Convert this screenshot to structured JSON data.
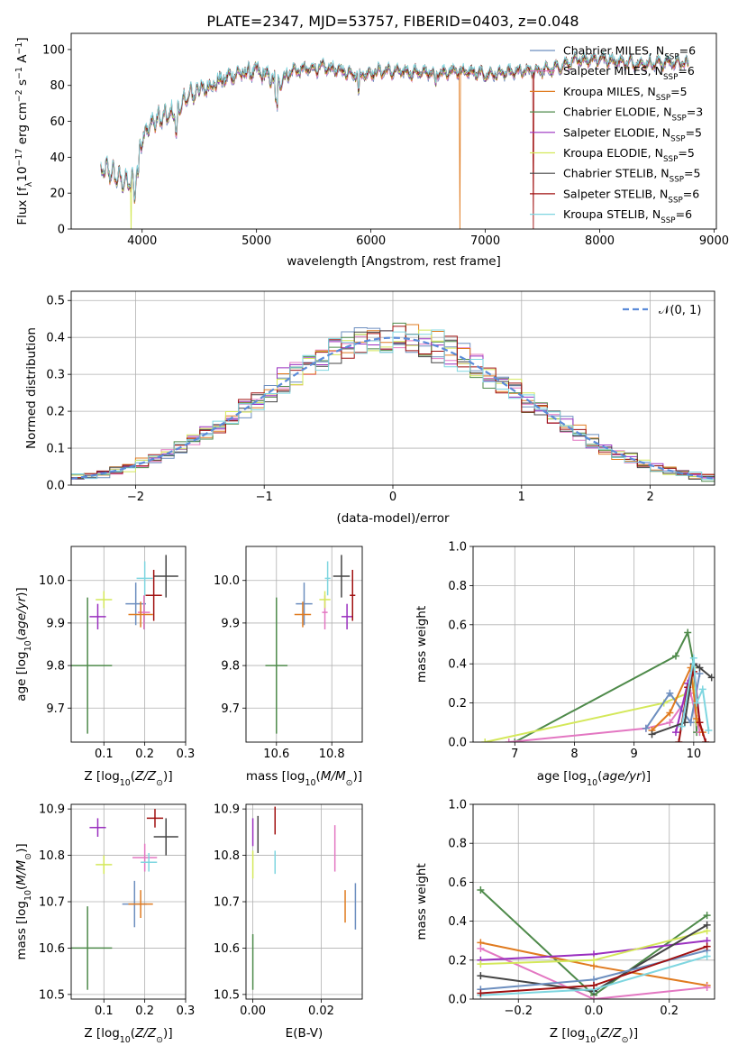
{
  "title": "PLATE=2347, MJD=53757, FIBERID=0403, z=0.048",
  "colors": {
    "chabrier_miles": "#6c8ebf",
    "salpeter_miles": "#e377c2",
    "kroupa_miles": "#e07b20",
    "chabrier_elodie": "#4e8a4a",
    "salpeter_elodie": "#9a2fbf",
    "kroupa_elodie": "#d4e85a",
    "chabrier_stelib": "#444444",
    "salpeter_stelib": "#a01010",
    "kroupa_stelib": "#7fd6e0",
    "gauss": "#5b8bd9"
  },
  "chart_data": [
    {
      "id": "spectrum",
      "type": "line",
      "title": "PLATE=2347, MJD=53757, FIBERID=0403, z=0.048",
      "xlabel": "wavelength [Angstrom, rest frame]",
      "ylabel": "Flux [f_λ 10^-17 erg cm^-2 s^-1 A^-1]",
      "xlim": [
        3380,
        9020
      ],
      "ylim": [
        0,
        109
      ],
      "xticks": [
        4000,
        5000,
        6000,
        7000,
        8000,
        9000
      ],
      "yticks": [
        0,
        20,
        40,
        60,
        80,
        100
      ],
      "legend_position": "top-right",
      "series": [
        {
          "name": "Chabrier MILES, N_SSP=6",
          "key": "chabrier_miles"
        },
        {
          "name": "Salpeter MILES, N_SSP=6",
          "key": "salpeter_miles"
        },
        {
          "name": "Kroupa MILES, N_SSP=5",
          "key": "kroupa_miles"
        },
        {
          "name": "Chabrier ELODIE, N_SSP=3",
          "key": "chabrier_elodie"
        },
        {
          "name": "Salpeter ELODIE, N_SSP=5",
          "key": "salpeter_elodie"
        },
        {
          "name": "Kroupa ELODIE, N_SSP=5",
          "key": "kroupa_elodie"
        },
        {
          "name": "Chabrier STELIB, N_SSP=5",
          "key": "chabrier_stelib"
        },
        {
          "name": "Salpeter STELIB, N_SSP=6",
          "key": "salpeter_stelib"
        },
        {
          "name": "Kroupa STELIB, N_SSP=6",
          "key": "kroupa_stelib"
        }
      ],
      "continuum": [
        [
          3640,
          32
        ],
        [
          3700,
          33
        ],
        [
          3800,
          28
        ],
        [
          3900,
          25
        ],
        [
          3950,
          32
        ],
        [
          4000,
          52
        ],
        [
          4100,
          60
        ],
        [
          4300,
          65
        ],
        [
          4400,
          74
        ],
        [
          4600,
          80
        ],
        [
          4800,
          86
        ],
        [
          5000,
          88
        ],
        [
          5200,
          82
        ],
        [
          5300,
          88
        ],
        [
          5600,
          90
        ],
        [
          5900,
          86
        ],
        [
          6100,
          88
        ],
        [
          6500,
          87
        ],
        [
          6800,
          88
        ],
        [
          7000,
          86
        ],
        [
          7200,
          87
        ],
        [
          7400,
          88
        ],
        [
          7600,
          89
        ],
        [
          7800,
          94
        ],
        [
          8000,
          95
        ],
        [
          8200,
          93
        ],
        [
          8400,
          92
        ],
        [
          8600,
          93
        ],
        [
          8780,
          92
        ]
      ],
      "dropouts": [
        {
          "key": "kroupa_elodie",
          "x": 3905
        },
        {
          "key": "kroupa_miles",
          "x": 6780
        },
        {
          "key": "salpeter_stelib",
          "x": 7420
        }
      ]
    },
    {
      "id": "residuals",
      "type": "histogram",
      "xlabel": "(data-model)/error",
      "ylabel": "Normed distribution",
      "xlim": [
        -2.5,
        2.5
      ],
      "ylim": [
        0,
        0.525
      ],
      "xticks": [
        -2,
        -1,
        0,
        1,
        2
      ],
      "yticks": [
        0.0,
        0.1,
        0.2,
        0.3,
        0.4,
        0.5
      ],
      "bin_width": 0.1,
      "legend": "𝒩(0, 1)",
      "legend_position": "top-right",
      "grid": true
    },
    {
      "id": "z_age",
      "type": "scatter",
      "xlabel": "Z [log10(Z/Z⊙)]",
      "ylabel": "age [log10(age/yr)]",
      "xlim": [
        0.02,
        0.3
      ],
      "ylim": [
        9.62,
        10.08
      ],
      "xticks": [
        0.1,
        0.2,
        0.3
      ],
      "yticks": [
        9.7,
        9.8,
        9.9,
        10.0
      ],
      "grid": true,
      "points": [
        {
          "key": "chabrier_miles",
          "x": 0.178,
          "y": 9.945,
          "ex": 0.025,
          "ey": 0.05
        },
        {
          "key": "salpeter_miles",
          "x": 0.198,
          "y": 9.925,
          "ex": 0.015,
          "ey": 0.04
        },
        {
          "key": "kroupa_miles",
          "x": 0.19,
          "y": 9.92,
          "ex": 0.03,
          "ey": 0.03
        },
        {
          "key": "chabrier_elodie",
          "x": 0.06,
          "y": 9.8,
          "ex": 0.06,
          "ey": 0.16
        },
        {
          "key": "salpeter_elodie",
          "x": 0.085,
          "y": 9.915,
          "ex": 0.02,
          "ey": 0.03
        },
        {
          "key": "kroupa_elodie",
          "x": 0.1,
          "y": 9.955,
          "ex": 0.02,
          "ey": 0.02
        },
        {
          "key": "chabrier_stelib",
          "x": 0.252,
          "y": 10.01,
          "ex": 0.03,
          "ey": 0.05
        },
        {
          "key": "salpeter_stelib",
          "x": 0.222,
          "y": 9.965,
          "ex": 0.02,
          "ey": 0.06
        },
        {
          "key": "kroupa_stelib",
          "x": 0.2,
          "y": 10.005,
          "ex": 0.02,
          "ey": 0.04
        }
      ]
    },
    {
      "id": "mass_age",
      "type": "scatter",
      "xlabel": "mass [log10(M/M⊙)]",
      "ylabel": "",
      "xlim": [
        10.49,
        10.91
      ],
      "ylim": [
        9.62,
        10.08
      ],
      "xticks": [
        10.6,
        10.8
      ],
      "yticks": [
        9.7,
        9.8,
        9.9,
        10.0
      ],
      "grid": true,
      "points": [
        {
          "key": "chabrier_miles",
          "x": 10.7,
          "y": 9.945,
          "ex": 0.03,
          "ey": 0.05
        },
        {
          "key": "salpeter_miles",
          "x": 10.775,
          "y": 9.925,
          "ex": 0.01,
          "ey": 0.04
        },
        {
          "key": "kroupa_miles",
          "x": 10.695,
          "y": 9.92,
          "ex": 0.03,
          "ey": 0.03
        },
        {
          "key": "chabrier_elodie",
          "x": 10.6,
          "y": 9.8,
          "ex": 0.04,
          "ey": 0.16
        },
        {
          "key": "salpeter_elodie",
          "x": 10.855,
          "y": 9.915,
          "ex": 0.02,
          "ey": 0.03
        },
        {
          "key": "kroupa_elodie",
          "x": 10.775,
          "y": 9.955,
          "ex": 0.02,
          "ey": 0.02
        },
        {
          "key": "chabrier_stelib",
          "x": 10.835,
          "y": 10.01,
          "ex": 0.03,
          "ey": 0.05
        },
        {
          "key": "salpeter_stelib",
          "x": 10.875,
          "y": 9.965,
          "ex": 0.01,
          "ey": 0.06
        },
        {
          "key": "kroupa_stelib",
          "x": 10.785,
          "y": 10.005,
          "ex": 0.01,
          "ey": 0.04
        }
      ]
    },
    {
      "id": "weights_age",
      "type": "line",
      "xlabel": "age [log10(age/yr)]",
      "ylabel": "mass weight",
      "xlim": [
        6.3,
        10.35
      ],
      "ylim": [
        0.0,
        1.0
      ],
      "xticks": [
        7,
        8,
        9,
        10
      ],
      "yticks": [
        0.0,
        0.2,
        0.4,
        0.6,
        0.8,
        1.0
      ],
      "grid": true,
      "series": [
        {
          "key": "chabrier_elodie",
          "x": [
            7.0,
            9.7,
            9.9,
            10.0,
            10.05
          ],
          "y": [
            0.0,
            0.44,
            0.56,
            0.4,
            0.05
          ]
        },
        {
          "key": "kroupa_elodie",
          "x": [
            6.5,
            9.5,
            9.9,
            10.0,
            10.05
          ],
          "y": [
            0.0,
            0.2,
            0.25,
            0.38,
            0.1
          ]
        },
        {
          "key": "salpeter_miles",
          "x": [
            6.9,
            9.2,
            9.6,
            9.95,
            10.1
          ],
          "y": [
            0.0,
            0.07,
            0.1,
            0.25,
            0.05
          ]
        },
        {
          "key": "chabrier_miles",
          "x": [
            9.2,
            9.6,
            9.95,
            10.1
          ],
          "y": [
            0.07,
            0.25,
            0.1,
            0.35
          ]
        },
        {
          "key": "kroupa_miles",
          "x": [
            9.3,
            9.6,
            9.95,
            10.05,
            10.15
          ],
          "y": [
            0.06,
            0.15,
            0.38,
            0.12,
            0.05
          ]
        },
        {
          "key": "salpeter_elodie",
          "x": [
            9.7,
            9.9,
            10.0,
            10.1
          ],
          "y": [
            0.05,
            0.3,
            0.4,
            0.1
          ]
        },
        {
          "key": "chabrier_stelib",
          "x": [
            9.3,
            9.85,
            10.0,
            10.1,
            10.3
          ],
          "y": [
            0.04,
            0.1,
            0.4,
            0.38,
            0.33
          ]
        },
        {
          "key": "salpeter_stelib",
          "x": [
            9.75,
            9.9,
            10.0,
            10.1,
            10.2
          ],
          "y": [
            0.0,
            0.28,
            0.36,
            0.1,
            0.0
          ]
        },
        {
          "key": "kroupa_stelib",
          "x": [
            9.8,
            10.0,
            10.05,
            10.15,
            10.25
          ],
          "y": [
            0.08,
            0.43,
            0.2,
            0.27,
            0.06
          ]
        }
      ]
    },
    {
      "id": "z_mass",
      "type": "scatter",
      "xlabel": "Z [log10(Z/Z⊙)]",
      "ylabel": "mass [log10(M/M⊙)]",
      "xlim": [
        0.02,
        0.3
      ],
      "ylim": [
        10.49,
        10.91
      ],
      "xticks": [
        0.1,
        0.2,
        0.3
      ],
      "yticks": [
        10.5,
        10.6,
        10.7,
        10.8,
        10.9
      ],
      "grid": true,
      "points": [
        {
          "key": "chabrier_miles",
          "x": 0.175,
          "y": 10.695,
          "ex": 0.03,
          "ey": 0.05
        },
        {
          "key": "salpeter_miles",
          "x": 0.2,
          "y": 10.795,
          "ex": 0.03,
          "ey": 0.03
        },
        {
          "key": "kroupa_miles",
          "x": 0.19,
          "y": 10.695,
          "ex": 0.03,
          "ey": 0.03
        },
        {
          "key": "chabrier_elodie",
          "x": 0.06,
          "y": 10.6,
          "ex": 0.06,
          "ey": 0.09
        },
        {
          "key": "salpeter_elodie",
          "x": 0.085,
          "y": 10.86,
          "ex": 0.02,
          "ey": 0.02
        },
        {
          "key": "kroupa_elodie",
          "x": 0.1,
          "y": 10.78,
          "ex": 0.02,
          "ey": 0.02
        },
        {
          "key": "chabrier_stelib",
          "x": 0.252,
          "y": 10.84,
          "ex": 0.03,
          "ey": 0.04
        },
        {
          "key": "salpeter_stelib",
          "x": 0.225,
          "y": 10.88,
          "ex": 0.02,
          "ey": 0.02
        },
        {
          "key": "kroupa_stelib",
          "x": 0.21,
          "y": 10.785,
          "ex": 0.02,
          "ey": 0.02
        }
      ]
    },
    {
      "id": "ebv_mass",
      "type": "scatter",
      "xlabel": "E(B-V)",
      "ylabel": "",
      "xlim": [
        -0.002,
        0.032
      ],
      "ylim": [
        10.49,
        10.91
      ],
      "xticks": [
        0.0,
        0.02
      ],
      "yticks": [
        10.5,
        10.6,
        10.7,
        10.8,
        10.9
      ],
      "grid": true,
      "points": [
        {
          "key": "chabrier_miles",
          "x": 0.03,
          "y": 10.69,
          "ex": 0.0,
          "ey": 0.05
        },
        {
          "key": "salpeter_miles",
          "x": 0.024,
          "y": 10.815,
          "ex": 0.0,
          "ey": 0.05
        },
        {
          "key": "kroupa_miles",
          "x": 0.027,
          "y": 10.69,
          "ex": 0.0,
          "ey": 0.035
        },
        {
          "key": "chabrier_elodie",
          "x": 0.0,
          "y": 10.57,
          "ex": 0.0,
          "ey": 0.06
        },
        {
          "key": "salpeter_elodie",
          "x": 0.0,
          "y": 10.85,
          "ex": 0.0,
          "ey": 0.03
        },
        {
          "key": "kroupa_elodie",
          "x": 0.0,
          "y": 10.78,
          "ex": 0.0,
          "ey": 0.03
        },
        {
          "key": "chabrier_stelib",
          "x": 0.0015,
          "y": 10.845,
          "ex": 0.0,
          "ey": 0.04
        },
        {
          "key": "salpeter_stelib",
          "x": 0.0065,
          "y": 10.875,
          "ex": 0.0,
          "ey": 0.03
        },
        {
          "key": "kroupa_stelib",
          "x": 0.0065,
          "y": 10.785,
          "ex": 0.0,
          "ey": 0.025
        }
      ]
    },
    {
      "id": "weights_z",
      "type": "line",
      "xlabel": "Z [log10(Z/Z⊙)]",
      "ylabel": "mass weight",
      "xlim": [
        -0.32,
        0.32
      ],
      "ylim": [
        0.0,
        1.0
      ],
      "xticks": [
        -0.2,
        0.0,
        0.2
      ],
      "yticks": [
        0.0,
        0.2,
        0.4,
        0.6,
        0.8,
        1.0
      ],
      "grid": true,
      "series": [
        {
          "key": "chabrier_elodie",
          "x": [
            -0.3,
            0.0,
            0.3
          ],
          "y": [
            0.56,
            0.02,
            0.43
          ]
        },
        {
          "key": "kroupa_miles",
          "x": [
            -0.3,
            0.0,
            0.3
          ],
          "y": [
            0.29,
            0.17,
            0.07
          ]
        },
        {
          "key": "salpeter_miles",
          "x": [
            -0.3,
            0.0,
            0.3
          ],
          "y": [
            0.26,
            0.0,
            0.06
          ]
        },
        {
          "key": "salpeter_elodie",
          "x": [
            -0.3,
            0.0,
            0.3
          ],
          "y": [
            0.2,
            0.23,
            0.3
          ]
        },
        {
          "key": "kroupa_elodie",
          "x": [
            -0.3,
            0.0,
            0.3
          ],
          "y": [
            0.18,
            0.2,
            0.35
          ]
        },
        {
          "key": "chabrier_stelib",
          "x": [
            -0.3,
            0.0,
            0.3
          ],
          "y": [
            0.12,
            0.04,
            0.38
          ]
        },
        {
          "key": "chabrier_miles",
          "x": [
            -0.3,
            0.0,
            0.3
          ],
          "y": [
            0.05,
            0.1,
            0.25
          ]
        },
        {
          "key": "kroupa_stelib",
          "x": [
            -0.3,
            0.0,
            0.3
          ],
          "y": [
            0.02,
            0.05,
            0.22
          ]
        },
        {
          "key": "salpeter_stelib",
          "x": [
            -0.3,
            0.0,
            0.3
          ],
          "y": [
            0.03,
            0.07,
            0.27
          ]
        }
      ]
    }
  ]
}
